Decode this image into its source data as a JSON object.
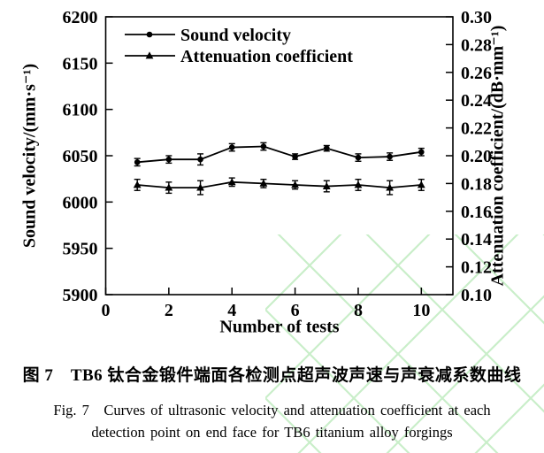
{
  "figure": {
    "caption_zh": "图 7　TB6 钛合金锻件端面各检测点超声波声速与声衰减系数曲线",
    "caption_en_line1": "Fig. 7　Curves of ultrasonic velocity and attenuation coefficient at each",
    "caption_en_line2": "detection point on end face for TB6 titanium alloy forgings"
  },
  "chart_data": {
    "type": "line",
    "x": [
      1,
      2,
      3,
      4,
      5,
      6,
      7,
      8,
      9,
      10
    ],
    "series": [
      {
        "name": "Sound velocity",
        "axis": "left",
        "marker": "circle",
        "values": [
          6043,
          6046,
          6046,
          6059,
          6060,
          6049,
          6058,
          6048,
          6049,
          6054
        ],
        "errors": [
          4,
          4,
          6,
          4,
          4,
          3,
          3,
          4,
          4,
          4
        ]
      },
      {
        "name": "Attenuation coefficient",
        "axis": "right",
        "marker": "triangle",
        "values": [
          0.179,
          0.177,
          0.177,
          0.181,
          0.18,
          0.179,
          0.178,
          0.179,
          0.177,
          0.179
        ],
        "errors": [
          0.004,
          0.004,
          0.005,
          0.003,
          0.003,
          0.003,
          0.004,
          0.004,
          0.005,
          0.004
        ]
      }
    ],
    "xlabel": "Number of tests",
    "ylabel_left": "Sound velocity/(mm·s⁻¹)",
    "ylabel_right": "Attenuation coefficient/(dB·mm⁻¹)",
    "x_axis": {
      "min": 0,
      "max": 11,
      "tick_labels": [
        "0",
        "2",
        "4",
        "6",
        "8",
        "10"
      ]
    },
    "y_left_axis": {
      "min": 5900,
      "max": 6200,
      "tick_labels": [
        "5900",
        "5950",
        "6000",
        "6050",
        "6100",
        "6150",
        "6200"
      ]
    },
    "y_right_axis": {
      "min": 0.1,
      "max": 0.3,
      "tick_labels": [
        "0.10",
        "0.12",
        "0.14",
        "0.16",
        "0.18",
        "0.20",
        "0.22",
        "0.24",
        "0.26",
        "0.28",
        "0.30"
      ]
    },
    "legend": {
      "position": "top-left-inside",
      "entries": [
        "Sound velocity",
        "Attenuation coefficient"
      ]
    },
    "grid": false,
    "colors": {
      "line": "#000000",
      "text": "#000000",
      "watermark": "#c9eec9"
    }
  }
}
